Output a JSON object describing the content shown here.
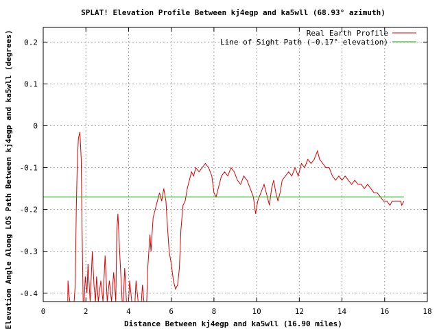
{
  "chart_data": {
    "type": "line",
    "title": "SPLAT! Elevation Profile Between kj4egp and ka5wll (68.93° azimuth)",
    "xlabel": "Distance Between kj4egp and ka5wll (16.90 miles)",
    "ylabel": "Elevation Angle Along LOS Path Between kj4egp and ka5wll (degrees)",
    "xlim": [
      0,
      18
    ],
    "ylim": [
      -0.42,
      0.235
    ],
    "x_ticks": [
      0,
      2,
      4,
      6,
      8,
      10,
      12,
      14,
      16,
      18
    ],
    "x_tick_labels": [
      "0",
      "2",
      "4",
      "6",
      "8",
      "10",
      "12",
      "14",
      "16",
      "18"
    ],
    "y_ticks": [
      0.2,
      0.1,
      0,
      -0.1,
      -0.2,
      -0.3,
      -0.4
    ],
    "y_tick_labels": [
      "0.2",
      "0.1",
      "0",
      "-0.1",
      "-0.2",
      "-0.3",
      "-0.4"
    ],
    "grid": true,
    "legend_position": "top-right",
    "series": [
      {
        "name": "Real Earth Profile",
        "color": "#dd0000",
        "points": [
          [
            1.15,
            -0.42
          ],
          [
            1.16,
            -0.37
          ],
          [
            1.2,
            -0.4
          ],
          [
            1.25,
            -0.42
          ],
          [
            1.45,
            -0.42
          ],
          [
            1.5,
            -0.38
          ],
          [
            1.55,
            -0.2
          ],
          [
            1.6,
            -0.08
          ],
          [
            1.65,
            -0.03
          ],
          [
            1.72,
            -0.015
          ],
          [
            1.78,
            -0.08
          ],
          [
            1.82,
            -0.24
          ],
          [
            1.87,
            -0.42
          ],
          [
            1.92,
            -0.42
          ],
          [
            1.97,
            -0.36
          ],
          [
            2.05,
            -0.4
          ],
          [
            2.1,
            -0.33
          ],
          [
            2.2,
            -0.42
          ],
          [
            2.3,
            -0.3
          ],
          [
            2.38,
            -0.38
          ],
          [
            2.45,
            -0.42
          ],
          [
            2.5,
            -0.36
          ],
          [
            2.58,
            -0.42
          ],
          [
            2.7,
            -0.37
          ],
          [
            2.8,
            -0.42
          ],
          [
            2.9,
            -0.31
          ],
          [
            3.0,
            -0.42
          ],
          [
            3.1,
            -0.37
          ],
          [
            3.2,
            -0.42
          ],
          [
            3.3,
            -0.35
          ],
          [
            3.4,
            -0.42
          ],
          [
            3.45,
            -0.25
          ],
          [
            3.5,
            -0.21
          ],
          [
            3.58,
            -0.3
          ],
          [
            3.7,
            -0.42
          ],
          [
            3.75,
            -0.42
          ],
          [
            3.82,
            -0.34
          ],
          [
            3.9,
            -0.42
          ],
          [
            4.0,
            -0.42
          ],
          [
            4.05,
            -0.37
          ],
          [
            4.15,
            -0.42
          ],
          [
            4.3,
            -0.42
          ],
          [
            4.35,
            -0.37
          ],
          [
            4.45,
            -0.42
          ],
          [
            4.6,
            -0.42
          ],
          [
            4.65,
            -0.38
          ],
          [
            4.72,
            -0.42
          ],
          [
            4.85,
            -0.42
          ],
          [
            4.9,
            -0.34
          ],
          [
            5.0,
            -0.26
          ],
          [
            5.05,
            -0.3
          ],
          [
            5.15,
            -0.22
          ],
          [
            5.25,
            -0.2
          ],
          [
            5.35,
            -0.18
          ],
          [
            5.45,
            -0.16
          ],
          [
            5.55,
            -0.18
          ],
          [
            5.65,
            -0.15
          ],
          [
            5.75,
            -0.18
          ],
          [
            5.82,
            -0.24
          ],
          [
            5.9,
            -0.3
          ],
          [
            6.0,
            -0.33
          ],
          [
            6.1,
            -0.37
          ],
          [
            6.2,
            -0.39
          ],
          [
            6.3,
            -0.38
          ],
          [
            6.38,
            -0.34
          ],
          [
            6.45,
            -0.25
          ],
          [
            6.55,
            -0.19
          ],
          [
            6.65,
            -0.18
          ],
          [
            6.75,
            -0.15
          ],
          [
            6.85,
            -0.13
          ],
          [
            6.95,
            -0.11
          ],
          [
            7.05,
            -0.12
          ],
          [
            7.15,
            -0.1
          ],
          [
            7.3,
            -0.11
          ],
          [
            7.45,
            -0.1
          ],
          [
            7.6,
            -0.09
          ],
          [
            7.75,
            -0.1
          ],
          [
            7.9,
            -0.12
          ],
          [
            8.0,
            -0.16
          ],
          [
            8.1,
            -0.17
          ],
          [
            8.2,
            -0.15
          ],
          [
            8.35,
            -0.12
          ],
          [
            8.5,
            -0.11
          ],
          [
            8.65,
            -0.12
          ],
          [
            8.8,
            -0.1
          ],
          [
            8.95,
            -0.11
          ],
          [
            9.1,
            -0.13
          ],
          [
            9.25,
            -0.14
          ],
          [
            9.4,
            -0.12
          ],
          [
            9.55,
            -0.13
          ],
          [
            9.7,
            -0.15
          ],
          [
            9.85,
            -0.17
          ],
          [
            9.95,
            -0.21
          ],
          [
            10.05,
            -0.18
          ],
          [
            10.2,
            -0.16
          ],
          [
            10.35,
            -0.14
          ],
          [
            10.5,
            -0.17
          ],
          [
            10.6,
            -0.19
          ],
          [
            10.7,
            -0.15
          ],
          [
            10.8,
            -0.13
          ],
          [
            10.9,
            -0.16
          ],
          [
            11.0,
            -0.18
          ],
          [
            11.1,
            -0.16
          ],
          [
            11.2,
            -0.13
          ],
          [
            11.35,
            -0.12
          ],
          [
            11.5,
            -0.11
          ],
          [
            11.65,
            -0.12
          ],
          [
            11.8,
            -0.1
          ],
          [
            11.95,
            -0.12
          ],
          [
            12.1,
            -0.09
          ],
          [
            12.25,
            -0.1
          ],
          [
            12.4,
            -0.08
          ],
          [
            12.55,
            -0.09
          ],
          [
            12.7,
            -0.08
          ],
          [
            12.85,
            -0.06
          ],
          [
            12.95,
            -0.08
          ],
          [
            13.1,
            -0.09
          ],
          [
            13.25,
            -0.1
          ],
          [
            13.4,
            -0.1
          ],
          [
            13.55,
            -0.12
          ],
          [
            13.7,
            -0.13
          ],
          [
            13.85,
            -0.12
          ],
          [
            14.0,
            -0.13
          ],
          [
            14.15,
            -0.12
          ],
          [
            14.3,
            -0.13
          ],
          [
            14.45,
            -0.14
          ],
          [
            14.6,
            -0.13
          ],
          [
            14.75,
            -0.14
          ],
          [
            14.9,
            -0.14
          ],
          [
            15.05,
            -0.15
          ],
          [
            15.2,
            -0.14
          ],
          [
            15.35,
            -0.15
          ],
          [
            15.5,
            -0.16
          ],
          [
            15.65,
            -0.16
          ],
          [
            15.8,
            -0.17
          ],
          [
            15.95,
            -0.18
          ],
          [
            16.1,
            -0.18
          ],
          [
            16.25,
            -0.19
          ],
          [
            16.35,
            -0.18
          ],
          [
            16.5,
            -0.18
          ],
          [
            16.65,
            -0.18
          ],
          [
            16.75,
            -0.18
          ],
          [
            16.8,
            -0.19
          ],
          [
            16.9,
            -0.18
          ]
        ]
      },
      {
        "name": "Line of Sight Path (-0.17° elevation)",
        "color": "#00aa00",
        "points": [
          [
            0,
            -0.17
          ],
          [
            16.9,
            -0.17
          ]
        ]
      }
    ]
  }
}
